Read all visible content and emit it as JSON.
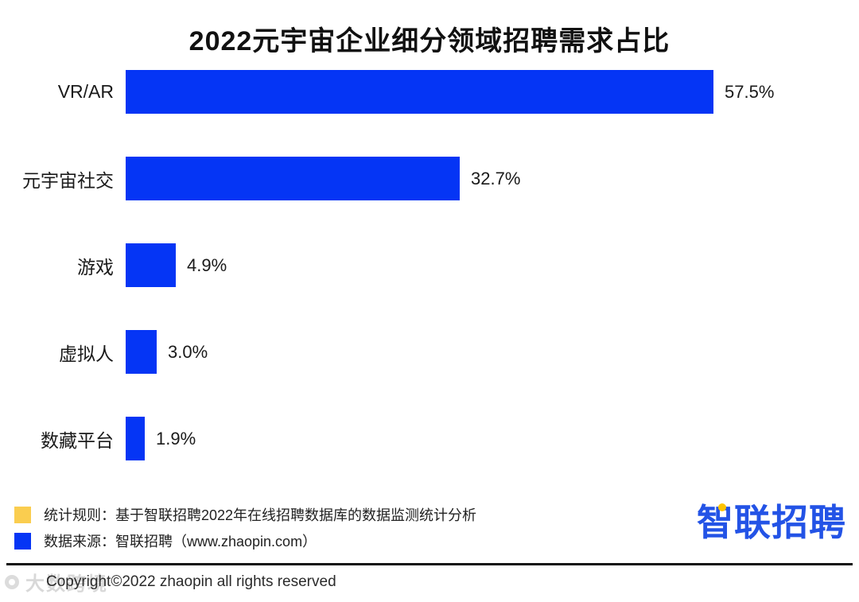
{
  "title": "2022元宇宙企业细分领域招聘需求占比",
  "chart_data": {
    "type": "bar",
    "orientation": "horizontal",
    "title": "2022元宇宙企业细分领域招聘需求占比",
    "categories": [
      "VR/AR",
      "元宇宙社交",
      "游戏",
      "虚拟人",
      "数藏平台"
    ],
    "values": [
      57.5,
      32.7,
      4.9,
      3.0,
      1.9
    ],
    "value_labels": [
      "57.5%",
      "32.7%",
      "4.9%",
      "3.0%",
      "1.9%"
    ],
    "xlabel": "",
    "ylabel": "",
    "xlim": [
      0,
      60
    ],
    "grid": false,
    "legend_position": "none",
    "bar_color": "#0535F5",
    "value_label_position": "end-of-bar"
  },
  "legend": {
    "items": [
      {
        "swatch_color": "#FACD4F",
        "label": "统计规则：基于智联招聘2022年在线招聘数据库的数据监测统计分析"
      },
      {
        "swatch_color": "#0535F5",
        "label": "数据来源：智联招聘（www.zhaopin.com）"
      }
    ]
  },
  "logo": {
    "text": "智联招聘",
    "color": "#2353E6",
    "accent_color": "#FFC400"
  },
  "footer": {
    "copyright": "Copyright©2022 zhaopin all rights reserved",
    "divider_color": "#111111"
  },
  "watermark": {
    "text": "大数跨境"
  }
}
